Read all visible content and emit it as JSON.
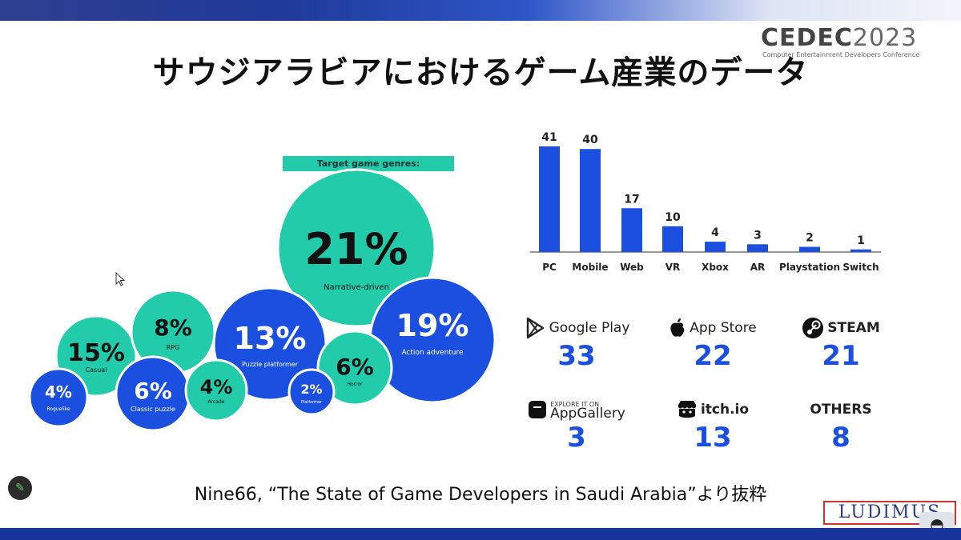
{
  "slide": {
    "title": "サウジアラビアにおけるゲーム産業のデータ",
    "source": "Nine66, “The State of Game Developers in Saudi Arabia”より抜粋"
  },
  "cedec": {
    "logo": "CEDEC",
    "year": "2023",
    "subtitle": "Computer Entertainment Developers Conference"
  },
  "ludimus": {
    "logo": "LUDIMUS"
  },
  "colors": {
    "teal": "#22ccaa",
    "blue": "#1a4fe0",
    "bar_blue": "#1a4fe0"
  },
  "chart_data": [
    {
      "type": "bubble",
      "title": "Target game genres:",
      "items": [
        {
          "label": "Narrative-driven",
          "value": 21,
          "pct": "21%",
          "color": "teal"
        },
        {
          "label": "Action adventure",
          "value": 19,
          "pct": "19%",
          "color": "blue"
        },
        {
          "label": "Casual",
          "value": 15,
          "pct": "15%",
          "color": "teal"
        },
        {
          "label": "Puzzle platformer",
          "value": 13,
          "pct": "13%",
          "color": "blue"
        },
        {
          "label": "RPG",
          "value": 8,
          "pct": "8%",
          "color": "teal"
        },
        {
          "label": "Horror",
          "value": 6,
          "pct": "6%",
          "color": "teal"
        },
        {
          "label": "Classic puzzle",
          "value": 6,
          "pct": "6%",
          "color": "blue"
        },
        {
          "label": "Arcade",
          "value": 4,
          "pct": "4%",
          "color": "teal"
        },
        {
          "label": "Roguelike",
          "value": 4,
          "pct": "4%",
          "color": "blue"
        },
        {
          "label": "Platformer",
          "value": 2,
          "pct": "2%",
          "color": "blue"
        }
      ]
    },
    {
      "type": "bar",
      "categories": [
        "PC",
        "Mobile",
        "Web",
        "VR",
        "Xbox",
        "AR",
        "Playstation",
        "Switch"
      ],
      "values": [
        41,
        40,
        17,
        10,
        4,
        3,
        2,
        1
      ],
      "ylim": [
        0,
        41
      ]
    },
    {
      "type": "table",
      "items": [
        {
          "name": "Google Play",
          "count": "33",
          "icon": "google-play-icon"
        },
        {
          "name": "App Store",
          "count": "22",
          "icon": "apple-icon"
        },
        {
          "name": "STEAM",
          "count": "21",
          "icon": "steam-icon"
        },
        {
          "name": "AppGallery",
          "small": "EXPLORE IT ON",
          "count": "3",
          "icon": "huawei-icon"
        },
        {
          "name": "itch.io",
          "count": "13",
          "icon": "itch-io-icon"
        },
        {
          "name": "OTHERS",
          "count": "8",
          "icon": ""
        }
      ]
    }
  ]
}
